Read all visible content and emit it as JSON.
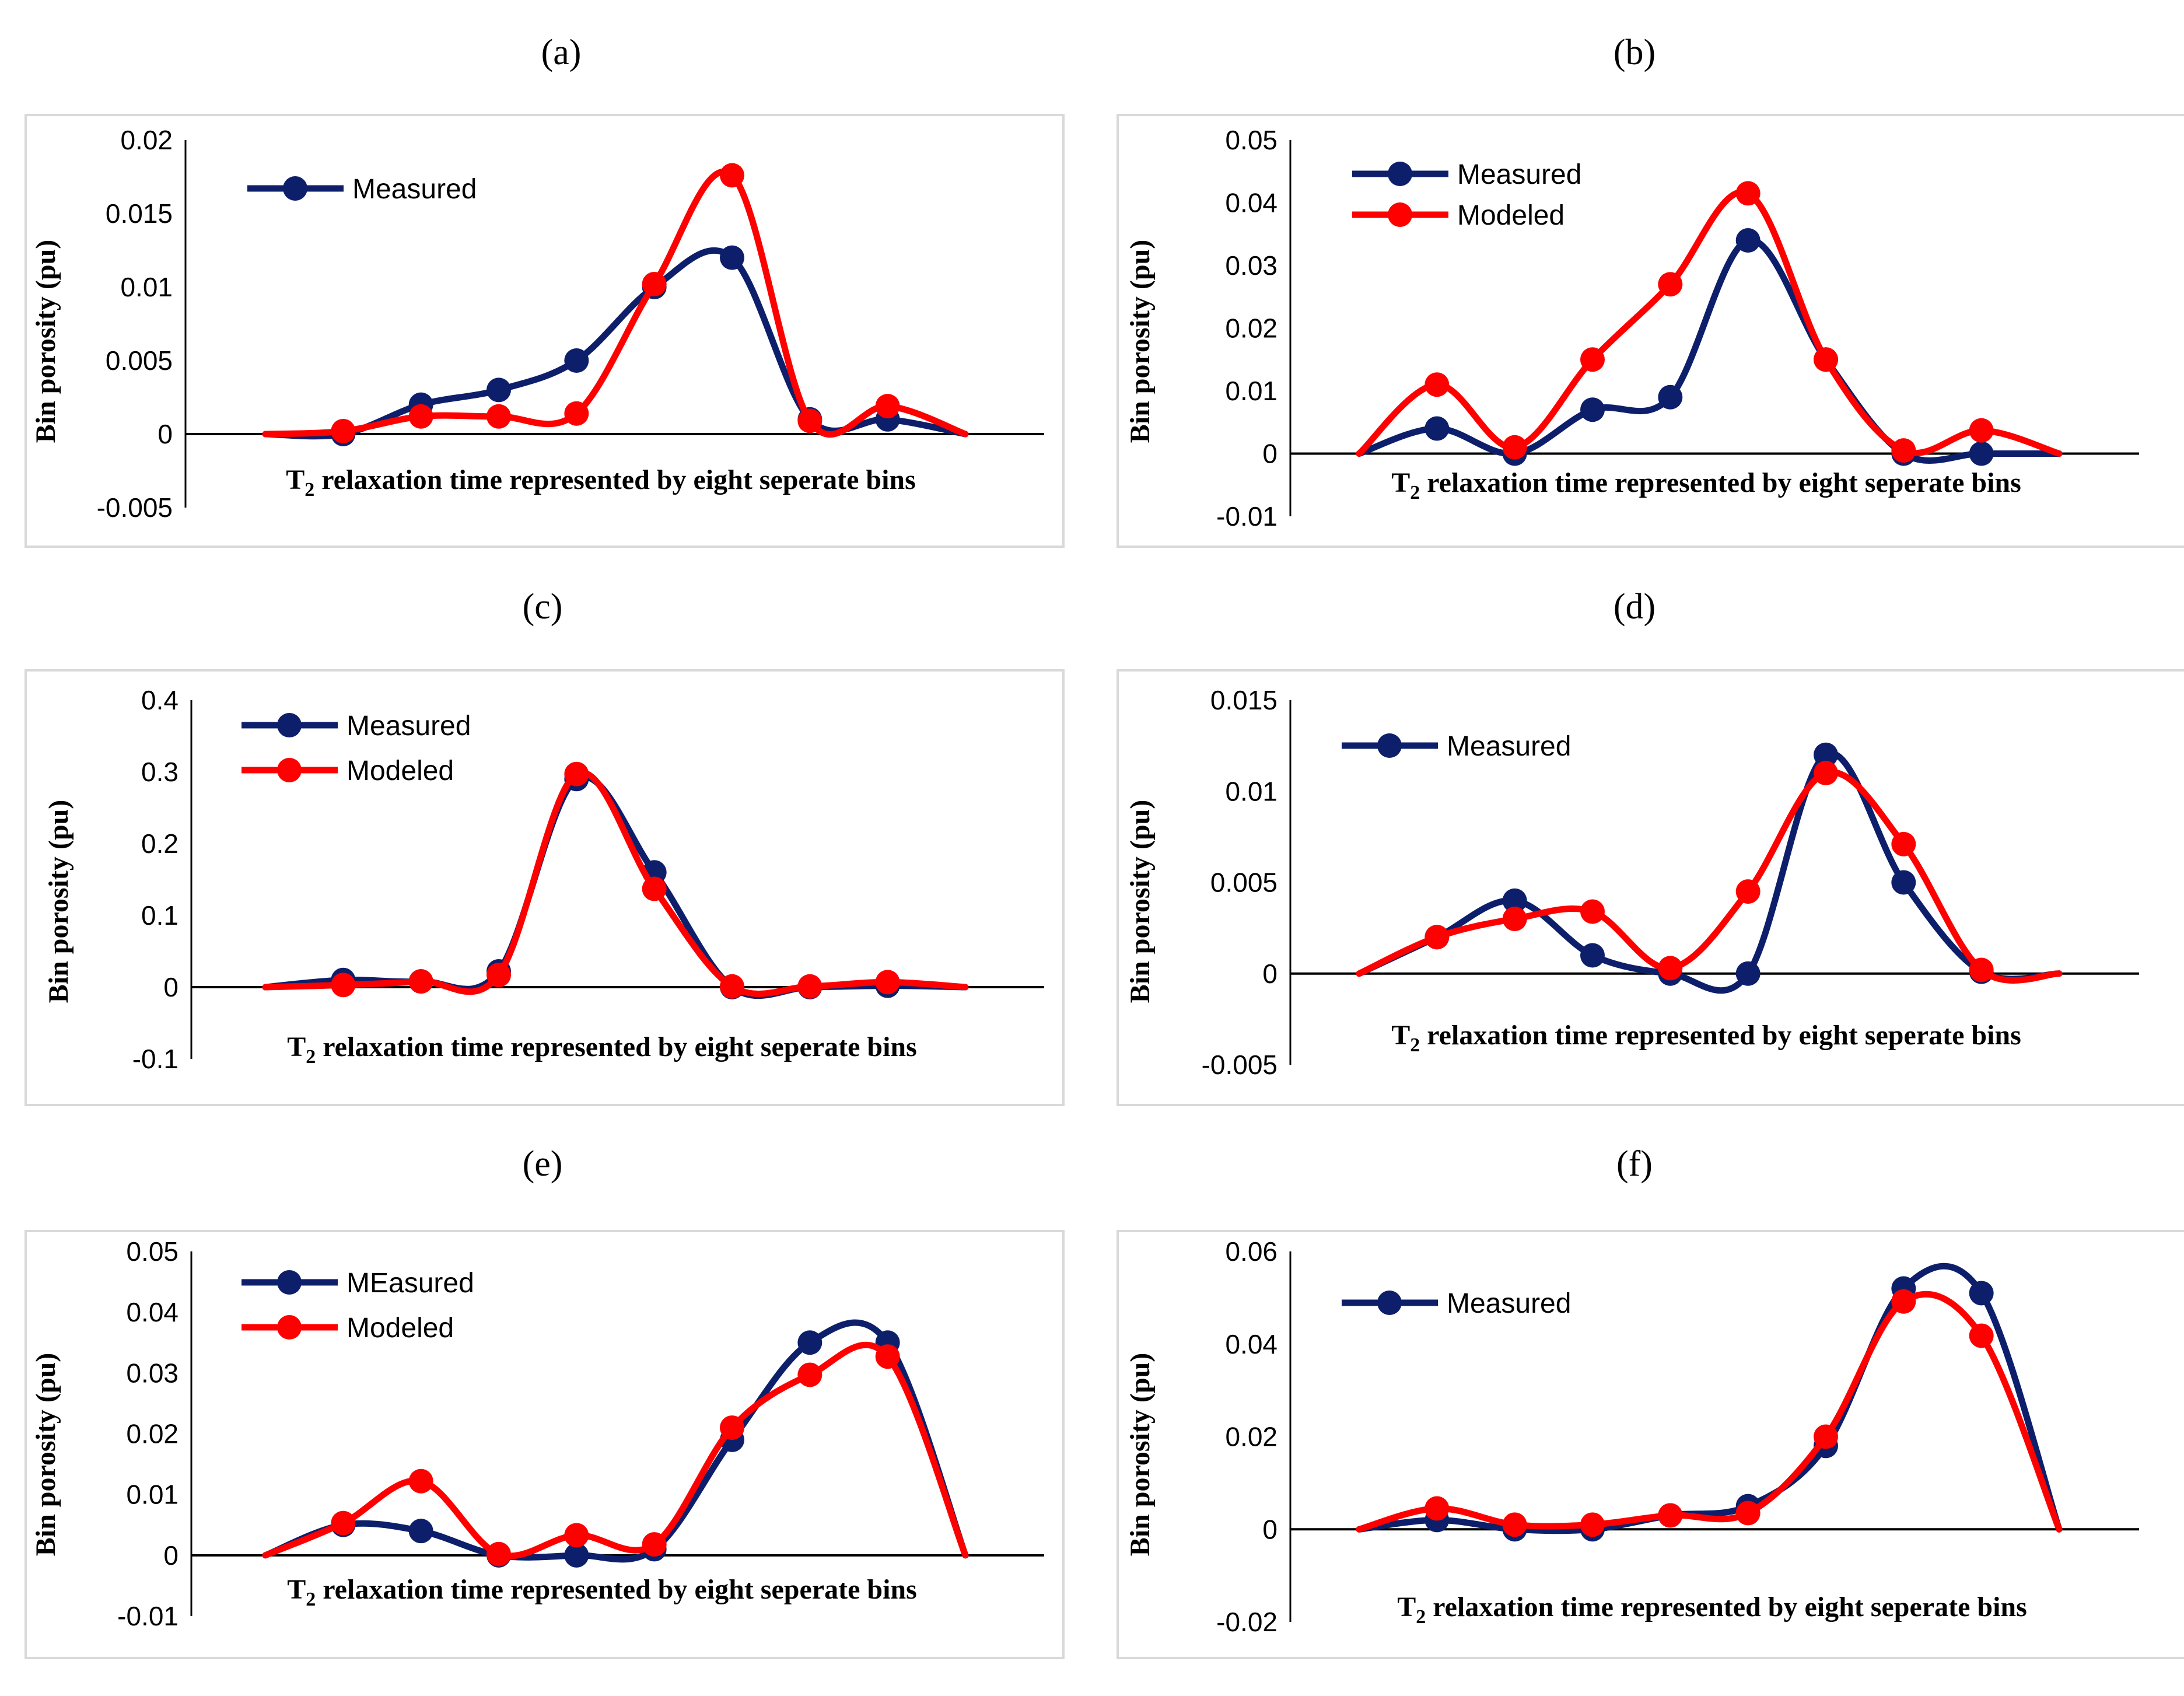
{
  "colors": {
    "measured": "#0d1f6b",
    "modeled": "#ff0000",
    "frame": "#d9d9d9",
    "axis": "#000000"
  },
  "chart_data": [
    {
      "panel": "(a)",
      "type": "line",
      "ylabel": "Bin porosity (pu)",
      "xlabel_main": "T",
      "xlabel_sub": "2",
      "xlabel_rest": " relaxation time represented by eight seperate bins",
      "yticks": [
        "0.02",
        "0.015",
        "0.01",
        "0.005",
        "0",
        "-0.005"
      ],
      "ylim": [
        -0.005,
        0.02
      ],
      "legend": [
        "Measured"
      ],
      "series": [
        {
          "name": "Measured",
          "color": "#0d1f6b",
          "x": [
            0,
            1,
            2,
            3,
            4,
            5,
            6,
            7,
            8,
            9
          ],
          "values": [
            0,
            0,
            0.002,
            0.003,
            0.005,
            0.01,
            0.012,
            0.001,
            0.001,
            0
          ],
          "markers": [
            1,
            2,
            3,
            4,
            5,
            6,
            7,
            8
          ]
        },
        {
          "color": "#ff0000",
          "x": [
            0,
            1,
            2,
            3,
            4,
            5,
            6,
            7,
            8,
            9
          ],
          "values": [
            0,
            0.0002,
            0.0012,
            0.0012,
            0.0014,
            0.0102,
            0.0176,
            0.0009,
            0.0019,
            0
          ],
          "markers": [
            1,
            2,
            3,
            4,
            5,
            6,
            7,
            8
          ]
        }
      ]
    },
    {
      "panel": "(b)",
      "type": "line",
      "ylabel": "Bin porosity (pu)",
      "xlabel_main": "T",
      "xlabel_sub": "2",
      "xlabel_rest": " relaxation time represented by eight seperate bins",
      "yticks": [
        "0.05",
        "0.04",
        "0.03",
        "0.02",
        "0.01",
        "0",
        "-0.01"
      ],
      "ylim": [
        -0.01,
        0.05
      ],
      "legend": [
        "Measured",
        "Modeled"
      ],
      "series": [
        {
          "name": "Measured",
          "color": "#0d1f6b",
          "x": [
            0,
            1,
            2,
            3,
            4,
            5,
            6,
            7,
            8,
            9
          ],
          "values": [
            0,
            0.004,
            0,
            0.007,
            0.009,
            0.034,
            0.015,
            0,
            0,
            0
          ],
          "markers": [
            1,
            2,
            3,
            4,
            5,
            6,
            7,
            8
          ]
        },
        {
          "name": "Modeled",
          "color": "#ff0000",
          "x": [
            0,
            1,
            2,
            3,
            4,
            5,
            6,
            7,
            8,
            9
          ],
          "values": [
            0,
            0.011,
            0.001,
            0.015,
            0.027,
            0.0415,
            0.015,
            0.0005,
            0.0037,
            0
          ],
          "markers": [
            1,
            2,
            3,
            4,
            5,
            6,
            7,
            8
          ]
        }
      ]
    },
    {
      "panel": "(c)",
      "type": "line",
      "ylabel": "Bin porosity (pu)",
      "xlabel_main": "T",
      "xlabel_sub": "2",
      "xlabel_rest": " relaxation time represented by eight seperate bins",
      "yticks": [
        "0.4",
        "0.3",
        "0.2",
        "0.1",
        "0",
        "-0.1"
      ],
      "ylim": [
        -0.1,
        0.4
      ],
      "legend": [
        "Measured",
        "Modeled"
      ],
      "series": [
        {
          "name": "Measured",
          "color": "#0d1f6b",
          "x": [
            0,
            1,
            2,
            3,
            4,
            5,
            6,
            7,
            8,
            9
          ],
          "values": [
            0,
            0.01,
            0.008,
            0.022,
            0.29,
            0.16,
            0,
            0,
            0.002,
            0
          ],
          "markers": [
            1,
            2,
            3,
            4,
            5,
            6,
            7,
            8
          ]
        },
        {
          "name": "Modeled",
          "color": "#ff0000",
          "x": [
            0,
            1,
            2,
            3,
            4,
            5,
            6,
            7,
            8,
            9
          ],
          "values": [
            0,
            0.003,
            0.008,
            0.017,
            0.297,
            0.137,
            0.001,
            0.001,
            0.007,
            0
          ],
          "markers": [
            1,
            2,
            3,
            4,
            5,
            6,
            7,
            8
          ]
        }
      ]
    },
    {
      "panel": "(d)",
      "type": "line",
      "ylabel": "Bin porosity (pu)",
      "xlabel_main": "T",
      "xlabel_sub": "2",
      "xlabel_rest": " relaxation time represented by eight seperate bins",
      "yticks": [
        "0.015",
        "0.01",
        "0.005",
        "0",
        "-0.005"
      ],
      "ylim": [
        -0.005,
        0.015
      ],
      "legend": [
        "Measured"
      ],
      "series": [
        {
          "name": "Measured",
          "color": "#0d1f6b",
          "x": [
            0,
            1,
            2,
            3,
            4,
            5,
            6,
            7,
            8,
            9
          ],
          "values": [
            0,
            0.002,
            0.004,
            0.001,
            0,
            0,
            0.012,
            0.005,
            0.0001,
            0
          ],
          "markers": [
            1,
            2,
            3,
            4,
            5,
            6,
            7,
            8
          ]
        },
        {
          "color": "#ff0000",
          "x": [
            0,
            1,
            2,
            3,
            4,
            5,
            6,
            7,
            8,
            9
          ],
          "values": [
            0,
            0.002,
            0.003,
            0.0034,
            0.0003,
            0.0045,
            0.011,
            0.0071,
            0.0002,
            0
          ],
          "markers": [
            1,
            2,
            3,
            4,
            5,
            6,
            7,
            8
          ]
        }
      ]
    },
    {
      "panel": "(e)",
      "type": "line",
      "ylabel": "Bin porosity (pu)",
      "xlabel_main": "T",
      "xlabel_sub": "2",
      "xlabel_rest": " relaxation time represented by eight seperate bins",
      "yticks": [
        "0.05",
        "0.04",
        "0.03",
        "0.02",
        "0.01",
        "0",
        "-0.01"
      ],
      "ylim": [
        -0.01,
        0.05
      ],
      "legend": [
        "MEasured",
        "Modeled"
      ],
      "series": [
        {
          "name": "MEasured",
          "color": "#0d1f6b",
          "x": [
            0,
            1,
            2,
            3,
            4,
            5,
            6,
            7,
            8,
            9
          ],
          "values": [
            0,
            0.005,
            0.004,
            0,
            0,
            0.001,
            0.019,
            0.035,
            0.035,
            0
          ],
          "markers": [
            1,
            2,
            3,
            4,
            5,
            6,
            7,
            8
          ]
        },
        {
          "name": "Modeled",
          "color": "#ff0000",
          "x": [
            0,
            1,
            2,
            3,
            4,
            5,
            6,
            7,
            8,
            9
          ],
          "values": [
            0,
            0.0053,
            0.0122,
            0.0002,
            0.0033,
            0.0018,
            0.021,
            0.0297,
            0.0327,
            0
          ],
          "markers": [
            1,
            2,
            3,
            4,
            5,
            6,
            7,
            8
          ]
        }
      ]
    },
    {
      "panel": "(f)",
      "type": "line",
      "ylabel": "Bin porosity (pu)",
      "xlabel_main": "T",
      "xlabel_sub": "2",
      "xlabel_rest": " relaxation time represented by eight seperate bins",
      "yticks": [
        "0.06",
        "0.04",
        "0.02",
        "0",
        "-0.02"
      ],
      "ylim": [
        -0.02,
        0.06
      ],
      "legend": [
        "Measured"
      ],
      "series": [
        {
          "name": "Measured",
          "color": "#0d1f6b",
          "x": [
            0,
            1,
            2,
            3,
            4,
            5,
            6,
            7,
            8,
            9
          ],
          "values": [
            0,
            0.002,
            0,
            0,
            0.003,
            0.005,
            0.018,
            0.052,
            0.051,
            0
          ],
          "markers": [
            1,
            2,
            3,
            4,
            5,
            6,
            7,
            8
          ]
        },
        {
          "color": "#ff0000",
          "x": [
            0,
            1,
            2,
            3,
            4,
            5,
            6,
            7,
            8,
            9
          ],
          "values": [
            0,
            0.0045,
            0.001,
            0.001,
            0.003,
            0.0035,
            0.02,
            0.0492,
            0.0418,
            0
          ],
          "markers": [
            1,
            2,
            3,
            4,
            5,
            6,
            7,
            8
          ]
        }
      ]
    }
  ]
}
